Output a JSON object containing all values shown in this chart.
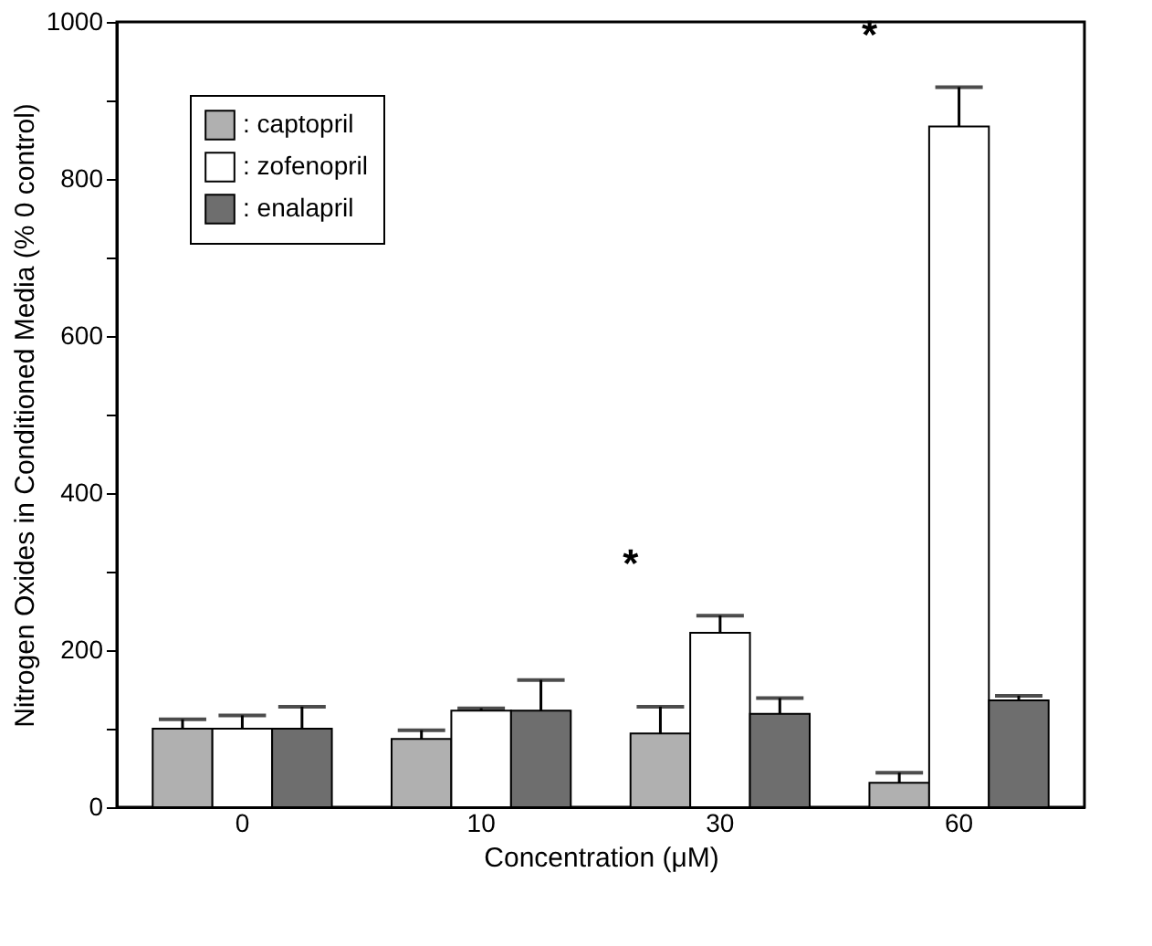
{
  "chart_data": {
    "type": "bar",
    "xlabel": "Concentration (μM)",
    "ylabel": "Nitrogen Oxides in Conditioned Media (% 0 control)",
    "categories": [
      "0",
      "10",
      "30",
      "60"
    ],
    "series": [
      {
        "name": ": captopril",
        "color": "#b0b0b0",
        "values": [
          100,
          87,
          94,
          31
        ],
        "errors": [
          [
            100,
            112
          ],
          [
            87,
            98
          ],
          [
            94,
            128
          ],
          [
            31,
            44
          ]
        ]
      },
      {
        "name": ": zofenopril",
        "color": "#ffffff",
        "values": [
          100,
          123,
          222,
          867
        ],
        "errors": [
          [
            100,
            117
          ],
          [
            123,
            126
          ],
          [
            222,
            244
          ],
          [
            867,
            917
          ]
        ]
      },
      {
        "name": ": enalapril",
        "color": "#6e6e6e",
        "values": [
          100,
          123,
          119,
          136
        ],
        "errors": [
          [
            100,
            128
          ],
          [
            123,
            162
          ],
          [
            119,
            139
          ],
          [
            136,
            142
          ]
        ]
      }
    ],
    "ylim": [
      0,
      1000
    ],
    "yticks": [
      0,
      {
        "value": 100,
        "label": null
      },
      200,
      {
        "value": 300,
        "label": null
      },
      400,
      {
        "value": 500,
        "label": null
      },
      600,
      {
        "value": 700,
        "label": null
      },
      800,
      {
        "value": 900,
        "label": null
      },
      1000
    ],
    "annotations": [
      {
        "text": "*",
        "x": "30",
        "y": 244
      },
      {
        "text": "*",
        "x": "60",
        "y": 917
      }
    ],
    "legend": "top left",
    "grid": false
  }
}
